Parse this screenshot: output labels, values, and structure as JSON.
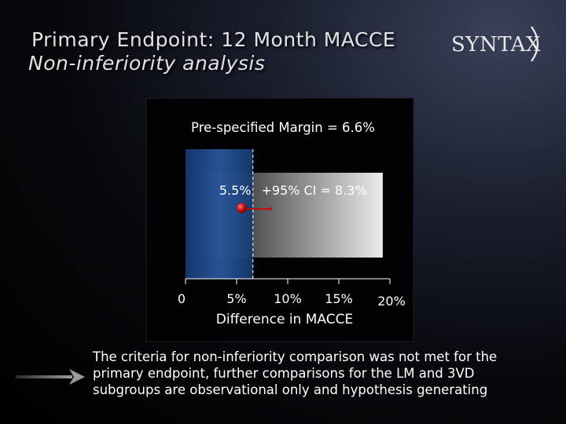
{
  "slide": {
    "title": "Primary Endpoint: 12 Month MACCE",
    "subtitle": "Non-inferiority analysis",
    "logo_text": "SYNTAX",
    "footnote": "The criteria for non-inferiority comparison was not met for the primary endpoint, further comparisons for the LM and 3VD subgroups are observational only and hypothesis generating",
    "arrow_icon": "right-arrow-icon"
  },
  "chart_data": {
    "type": "forest",
    "xlabel": "Difference in MACCE",
    "xlim": [
      0,
      20
    ],
    "ticks": [
      {
        "value": 0,
        "label": "0"
      },
      {
        "value": 5,
        "label": "5%"
      },
      {
        "value": 10,
        "label": "10%"
      },
      {
        "value": 15,
        "label": "15%"
      },
      {
        "value": 20,
        "label": "20%"
      }
    ],
    "margin_label": "Pre-specified Margin = 6.6%",
    "margin_value": 6.6,
    "point": {
      "value": 5.5,
      "label": "5.5%",
      "ci_upper": 8.3,
      "ci_label": "+95% CI = 8.3%"
    },
    "colors": {
      "margin_band": "#1e4a8c",
      "point": "#d01818",
      "ci_line": "#c01010"
    }
  }
}
